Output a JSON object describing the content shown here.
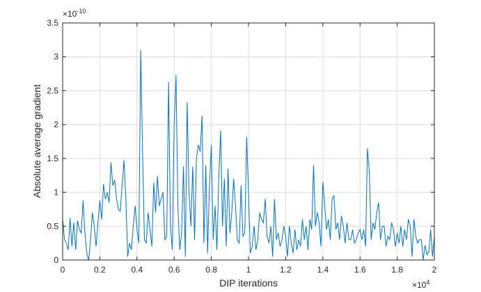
{
  "chart_data": {
    "type": "line",
    "xlabel": "DIP iterations",
    "ylabel": "Absolute average gradient",
    "x_multiplier": {
      "base": "×10",
      "exp": "4"
    },
    "y_multiplier": {
      "base": "×10",
      "exp": "-10"
    },
    "x": [
      0,
      0.01,
      0.02,
      0.03,
      0.04,
      0.05,
      0.06,
      0.07,
      0.08,
      0.09,
      0.1,
      0.11,
      0.12,
      0.13,
      0.14,
      0.15,
      0.16,
      0.17,
      0.18,
      0.19,
      0.2,
      0.21,
      0.22,
      0.23,
      0.24,
      0.25,
      0.26,
      0.27,
      0.28,
      0.29,
      0.3,
      0.31,
      0.32,
      0.33,
      0.34,
      0.35,
      0.36,
      0.37,
      0.38,
      0.39,
      0.4,
      0.41,
      0.42,
      0.43,
      0.44,
      0.45,
      0.46,
      0.47,
      0.48,
      0.49,
      0.5,
      0.51,
      0.52,
      0.53,
      0.54,
      0.55,
      0.56,
      0.57,
      0.58,
      0.59,
      0.6,
      0.61,
      0.62,
      0.63,
      0.64,
      0.65,
      0.66,
      0.67,
      0.68,
      0.69,
      0.7,
      0.71,
      0.72,
      0.73,
      0.74,
      0.75,
      0.76,
      0.77,
      0.78,
      0.79,
      0.8,
      0.81,
      0.82,
      0.83,
      0.84,
      0.85,
      0.86,
      0.87,
      0.88,
      0.89,
      0.9,
      0.91,
      0.92,
      0.93,
      0.94,
      0.95,
      0.96,
      0.97,
      0.98,
      0.99,
      1,
      1.01,
      1.02,
      1.03,
      1.04,
      1.05,
      1.06,
      1.07,
      1.08,
      1.09,
      1.1,
      1.11,
      1.12,
      1.13,
      1.14,
      1.15,
      1.16,
      1.17,
      1.18,
      1.19,
      1.2,
      1.21,
      1.22,
      1.23,
      1.24,
      1.25,
      1.26,
      1.27,
      1.28,
      1.29,
      1.3,
      1.31,
      1.32,
      1.33,
      1.34,
      1.35,
      1.36,
      1.37,
      1.38,
      1.39,
      1.4,
      1.41,
      1.42,
      1.43,
      1.44,
      1.45,
      1.46,
      1.47,
      1.48,
      1.49,
      1.5,
      1.51,
      1.52,
      1.53,
      1.54,
      1.55,
      1.56,
      1.57,
      1.58,
      1.59,
      1.6,
      1.61,
      1.62,
      1.63,
      1.64,
      1.65,
      1.66,
      1.67,
      1.68,
      1.69,
      1.7,
      1.71,
      1.72,
      1.73,
      1.74,
      1.75,
      1.76,
      1.77,
      1.78,
      1.79,
      1.8,
      1.81,
      1.82,
      1.83,
      1.84,
      1.85,
      1.86,
      1.87,
      1.88,
      1.89,
      1.9,
      1.91,
      1.92,
      1.93,
      1.94,
      1.95,
      1.96,
      1.97,
      1.98,
      1.99,
      2
    ],
    "series": [
      {
        "color": "#0072bd",
        "values": [
          0.6,
          0.3,
          0.25,
          0.15,
          0.62,
          0.2,
          0.55,
          0.15,
          0.58,
          0.45,
          0.4,
          0.88,
          0.4,
          0.1,
          0,
          0.3,
          0.7,
          0.5,
          0.2,
          0.55,
          0.88,
          0.6,
          1.12,
          0.9,
          1.0,
          0.85,
          1.44,
          1.1,
          1.18,
          0.9,
          0.75,
          0.72,
          1.1,
          1.47,
          0.9,
          0.05,
          0.25,
          0.15,
          0.5,
          0.8,
          0.45,
          0.25,
          3.1,
          1.6,
          0.3,
          0.25,
          0.7,
          0.45,
          0.2,
          1.14,
          0.7,
          1.24,
          0.8,
          0.9,
          1.0,
          0.3,
          0.35,
          2.63,
          0.5,
          0.15,
          2.0,
          2.73,
          0.8,
          0.15,
          0.4,
          1.38,
          0.05,
          2.33,
          1.0,
          0.5,
          1.38,
          0.3,
          1.5,
          1.7,
          1.6,
          2.13,
          0.25,
          1.4,
          0.1,
          1.1,
          1.7,
          0.3,
          0.8,
          0.15,
          1.2,
          1.91,
          0.5,
          1.2,
          0.2,
          1.35,
          0.4,
          0.7,
          1.2,
          0.8,
          0.3,
          0.25,
          1.1,
          0.35,
          0.4,
          1.82,
          1.0,
          0.1,
          0.2,
          0.5,
          0.15,
          0.3,
          0.7,
          0.6,
          0.55,
          0.9,
          0.35,
          0.25,
          0.5,
          0.05,
          0.9,
          0.3,
          0.4,
          0.2,
          0.3,
          0.5,
          0.35,
          0.05,
          0.5,
          0.25,
          0.1,
          0.45,
          0.15,
          0.3,
          0.2,
          0.6,
          0.3,
          0.5,
          0.15,
          0.6,
          0.45,
          1.4,
          0.5,
          0.7,
          0.55,
          0.2,
          1.15,
          0.8,
          0.45,
          0.6,
          0.3,
          0.9,
          0.95,
          0.45,
          0.55,
          0.3,
          0.65,
          0.5,
          0.25,
          0.55,
          0.3,
          0.3,
          0.45,
          0.25,
          0.3,
          0.4,
          0.45,
          0.3,
          0.45,
          0.2,
          1.65,
          1.3,
          0.3,
          0.55,
          0.45,
          0.7,
          0.85,
          0.3,
          0.5,
          0.5,
          0.2,
          0.35,
          0.3,
          0.55,
          0.45,
          0.2,
          0.4,
          0.25,
          0.5,
          0.2,
          0.45,
          0.3,
          0.6,
          0.5,
          0.05,
          0.6,
          0.35,
          0.25,
          0.3,
          0.3,
          0,
          0.22,
          0.08,
          0.12,
          0.45,
          0.05,
          0.35
        ]
      }
    ],
    "xlim": [
      0,
      2
    ],
    "xticks": [
      0,
      0.2,
      0.4,
      0.6,
      0.8,
      1,
      1.2,
      1.4,
      1.6,
      1.8,
      2
    ],
    "ylim": [
      0,
      3.5
    ],
    "yticks": [
      0,
      0.5,
      1,
      1.5,
      2,
      2.5,
      3,
      3.5
    ],
    "grid": true
  }
}
